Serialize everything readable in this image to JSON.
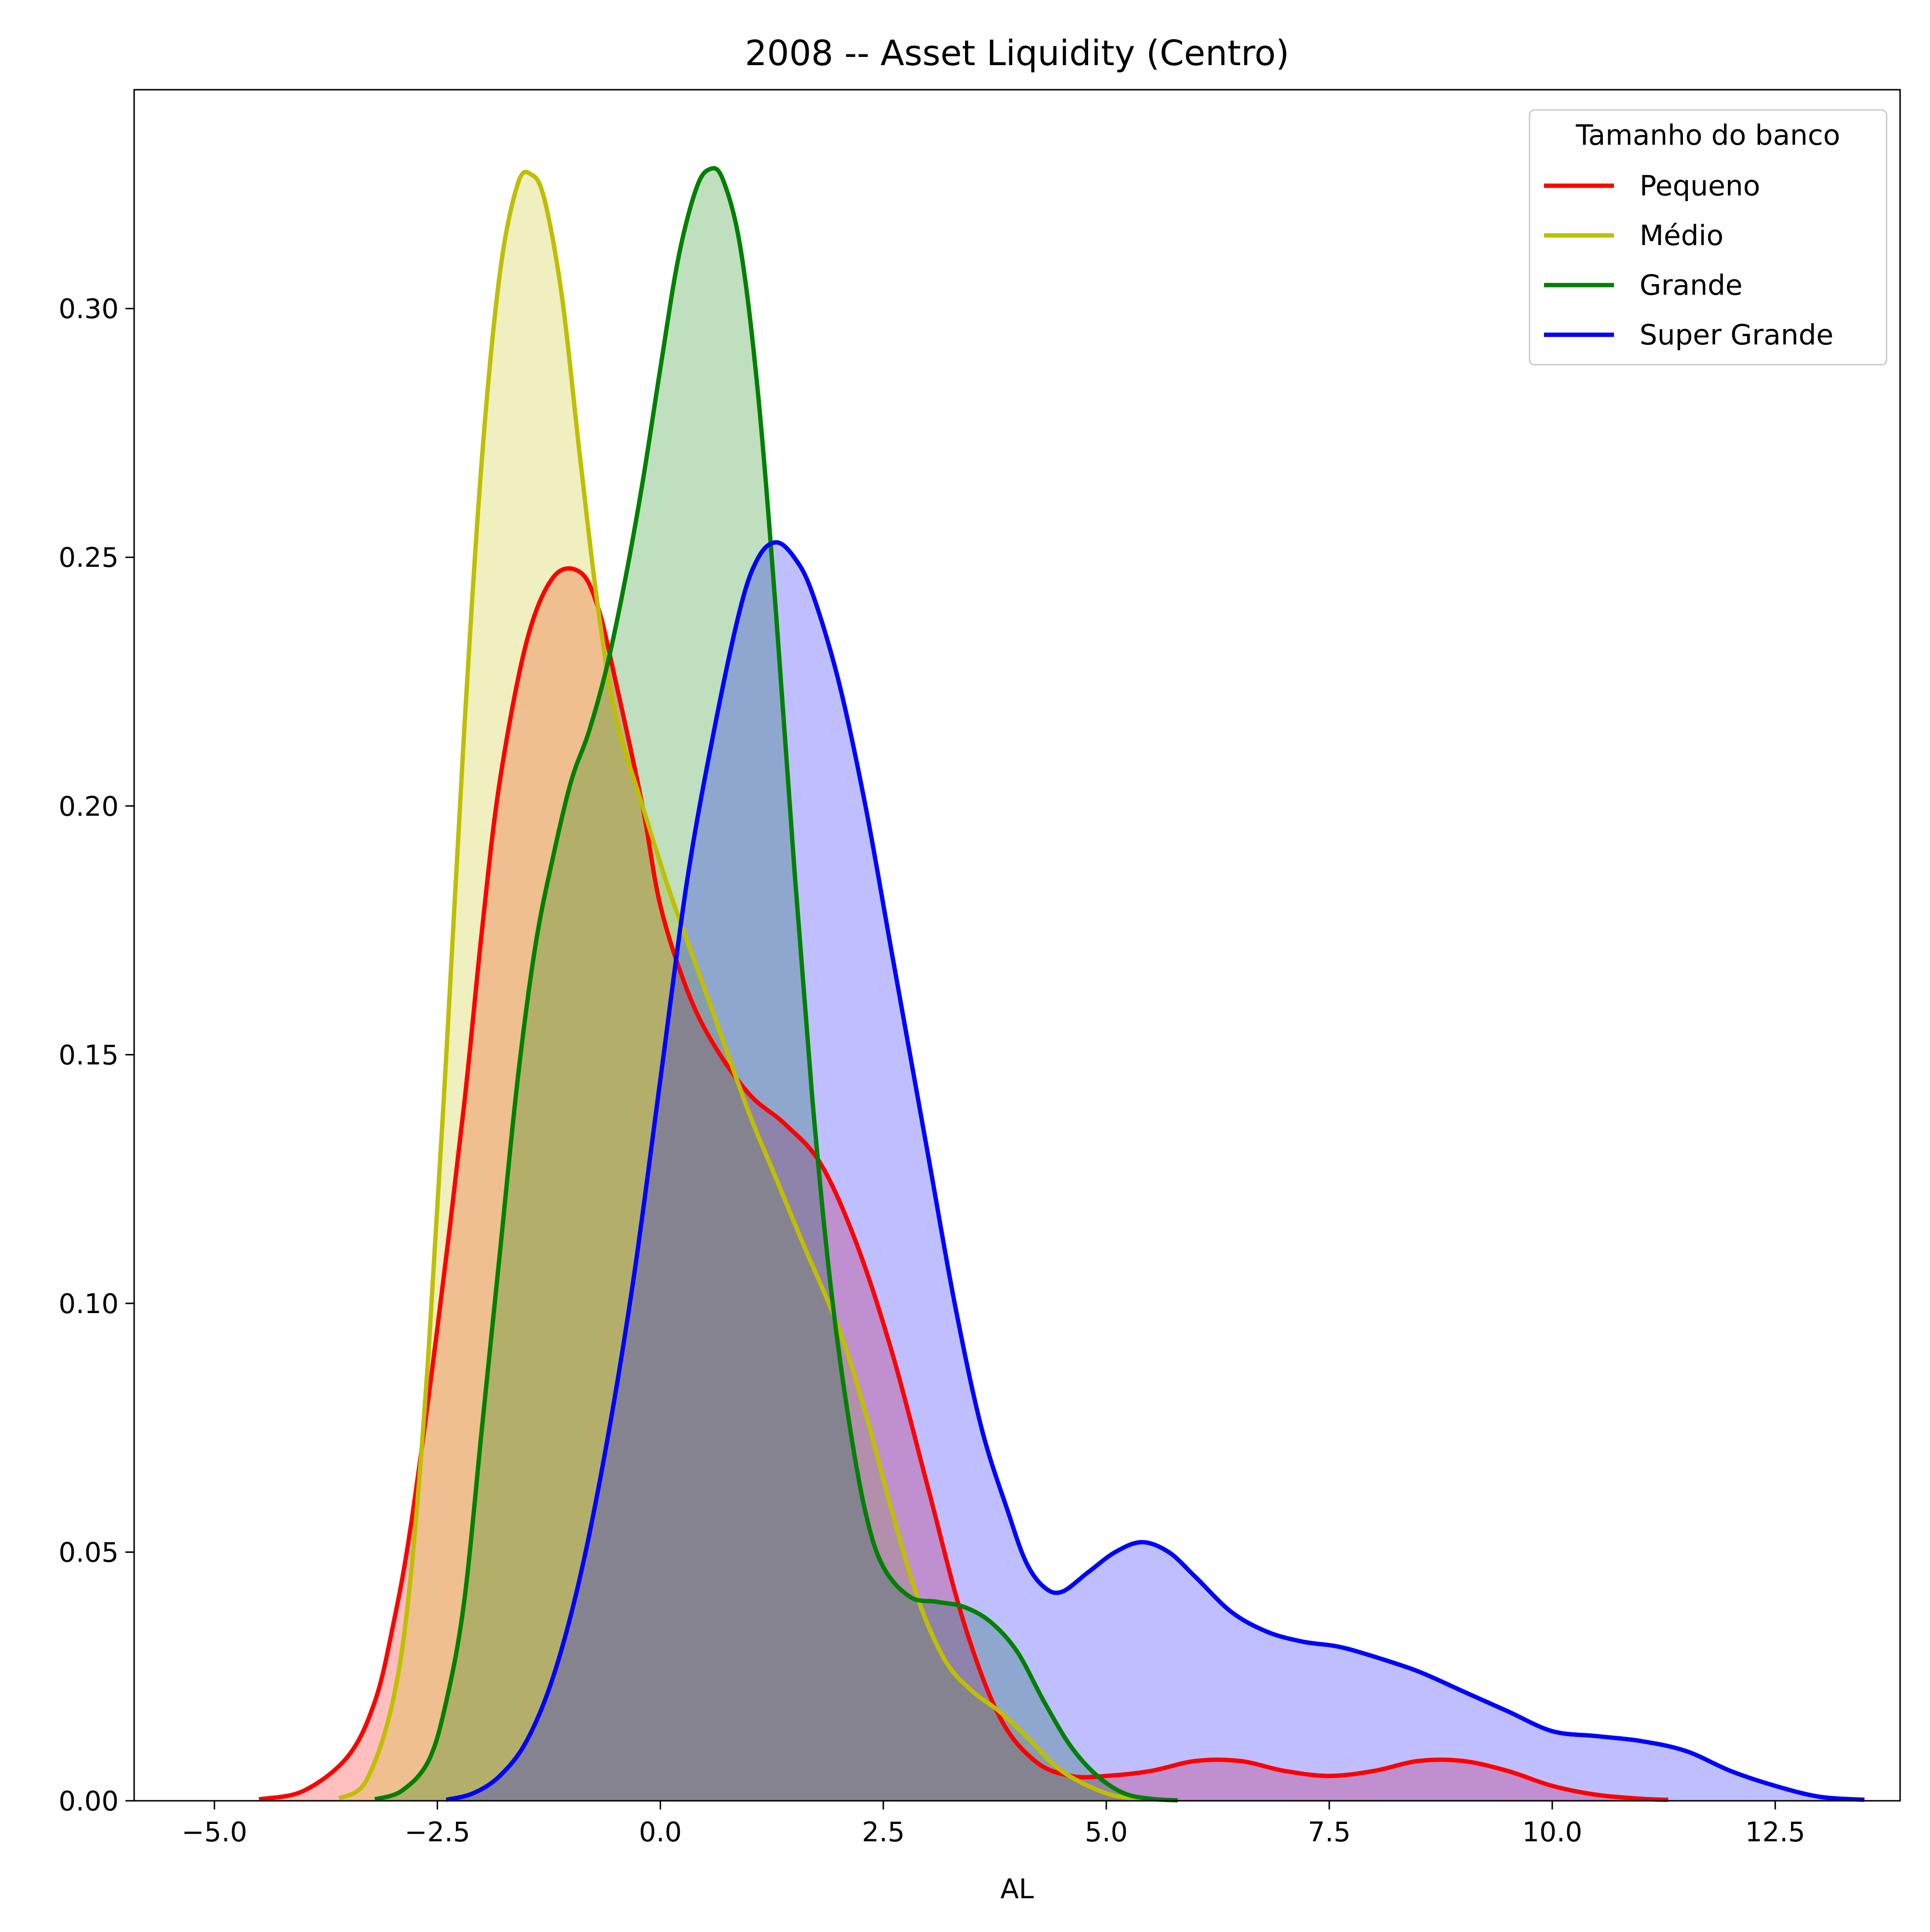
{
  "chart_data": {
    "type": "area",
    "title": "2008 -- Asset Liquidity (Centro)",
    "xlabel": "AL",
    "ylabel": "",
    "xlim": [
      -5.9,
      13.9
    ],
    "ylim": [
      0,
      0.344
    ],
    "x_ticks": [
      -5.0,
      -2.5,
      0.0,
      2.5,
      5.0,
      7.5,
      10.0,
      12.5
    ],
    "x_tick_labels": [
      "−5.0",
      "−2.5",
      "0.0",
      "2.5",
      "5.0",
      "7.5",
      "10.0",
      "12.5"
    ],
    "y_ticks": [
      0.0,
      0.05,
      0.1,
      0.15,
      0.2,
      0.25,
      0.3
    ],
    "y_tick_labels": [
      "0.00",
      "0.05",
      "0.10",
      "0.15",
      "0.20",
      "0.25",
      "0.30"
    ],
    "grid": false,
    "legend": {
      "title": "Tamanho do banco",
      "placement": "top-right"
    },
    "series": [
      {
        "name": "Pequeno",
        "color": "#ff0000",
        "fill_opacity": 0.25,
        "points": [
          [
            -4.5,
            0.0003
          ],
          [
            -4.0,
            0.002
          ],
          [
            -3.5,
            0.009
          ],
          [
            -3.2,
            0.02
          ],
          [
            -3.0,
            0.035
          ],
          [
            -2.8,
            0.055
          ],
          [
            -2.5,
            0.095
          ],
          [
            -2.2,
            0.14
          ],
          [
            -2.0,
            0.175
          ],
          [
            -1.8,
            0.205
          ],
          [
            -1.5,
            0.233
          ],
          [
            -1.2,
            0.246
          ],
          [
            -0.9,
            0.247
          ],
          [
            -0.7,
            0.24
          ],
          [
            -0.5,
            0.225
          ],
          [
            -0.2,
            0.2
          ],
          [
            0.0,
            0.18
          ],
          [
            0.3,
            0.163
          ],
          [
            0.6,
            0.152
          ],
          [
            1.0,
            0.142
          ],
          [
            1.4,
            0.136
          ],
          [
            1.8,
            0.128
          ],
          [
            2.2,
            0.112
          ],
          [
            2.6,
            0.09
          ],
          [
            3.0,
            0.063
          ],
          [
            3.4,
            0.036
          ],
          [
            3.8,
            0.017
          ],
          [
            4.2,
            0.008
          ],
          [
            4.6,
            0.005
          ],
          [
            5.0,
            0.005
          ],
          [
            5.5,
            0.006
          ],
          [
            6.0,
            0.008
          ],
          [
            6.5,
            0.008
          ],
          [
            7.0,
            0.006
          ],
          [
            7.5,
            0.005
          ],
          [
            8.0,
            0.006
          ],
          [
            8.5,
            0.008
          ],
          [
            9.0,
            0.008
          ],
          [
            9.5,
            0.006
          ],
          [
            10.0,
            0.003
          ],
          [
            10.5,
            0.0012
          ],
          [
            11.0,
            0.0004
          ],
          [
            11.3,
            0.0002
          ]
        ]
      },
      {
        "name": "Médio",
        "color": "#bfbf00",
        "fill_opacity": 0.25,
        "points": [
          [
            -3.6,
            0.0005
          ],
          [
            -3.3,
            0.004
          ],
          [
            -3.0,
            0.02
          ],
          [
            -2.8,
            0.045
          ],
          [
            -2.6,
            0.09
          ],
          [
            -2.4,
            0.15
          ],
          [
            -2.2,
            0.215
          ],
          [
            -2.0,
            0.27
          ],
          [
            -1.8,
            0.307
          ],
          [
            -1.6,
            0.325
          ],
          [
            -1.45,
            0.327
          ],
          [
            -1.3,
            0.322
          ],
          [
            -1.1,
            0.302
          ],
          [
            -0.9,
            0.27
          ],
          [
            -0.7,
            0.24
          ],
          [
            -0.5,
            0.218
          ],
          [
            -0.2,
            0.2
          ],
          [
            0.1,
            0.183
          ],
          [
            0.4,
            0.168
          ],
          [
            0.7,
            0.153
          ],
          [
            1.0,
            0.138
          ],
          [
            1.3,
            0.125
          ],
          [
            1.6,
            0.112
          ],
          [
            2.0,
            0.095
          ],
          [
            2.3,
            0.078
          ],
          [
            2.6,
            0.058
          ],
          [
            2.9,
            0.04
          ],
          [
            3.2,
            0.028
          ],
          [
            3.5,
            0.022
          ],
          [
            3.8,
            0.018
          ],
          [
            4.1,
            0.013
          ],
          [
            4.5,
            0.006
          ],
          [
            5.0,
            0.0015
          ],
          [
            5.4,
            0.0003
          ]
        ]
      },
      {
        "name": "Grande",
        "color": "#008000",
        "fill_opacity": 0.25,
        "points": [
          [
            -3.2,
            0.0003
          ],
          [
            -2.9,
            0.002
          ],
          [
            -2.6,
            0.008
          ],
          [
            -2.4,
            0.02
          ],
          [
            -2.2,
            0.04
          ],
          [
            -2.0,
            0.075
          ],
          [
            -1.8,
            0.11
          ],
          [
            -1.6,
            0.145
          ],
          [
            -1.4,
            0.172
          ],
          [
            -1.2,
            0.19
          ],
          [
            -1.0,
            0.205
          ],
          [
            -0.8,
            0.215
          ],
          [
            -0.6,
            0.228
          ],
          [
            -0.4,
            0.245
          ],
          [
            -0.2,
            0.265
          ],
          [
            0.0,
            0.288
          ],
          [
            0.2,
            0.31
          ],
          [
            0.4,
            0.324
          ],
          [
            0.55,
            0.328
          ],
          [
            0.7,
            0.326
          ],
          [
            0.9,
            0.312
          ],
          [
            1.1,
            0.282
          ],
          [
            1.3,
            0.238
          ],
          [
            1.5,
            0.188
          ],
          [
            1.7,
            0.142
          ],
          [
            1.9,
            0.105
          ],
          [
            2.1,
            0.078
          ],
          [
            2.3,
            0.058
          ],
          [
            2.5,
            0.047
          ],
          [
            2.8,
            0.041
          ],
          [
            3.1,
            0.04
          ],
          [
            3.4,
            0.039
          ],
          [
            3.7,
            0.036
          ],
          [
            4.0,
            0.03
          ],
          [
            4.3,
            0.02
          ],
          [
            4.6,
            0.011
          ],
          [
            4.9,
            0.005
          ],
          [
            5.2,
            0.0015
          ],
          [
            5.5,
            0.0004
          ],
          [
            5.8,
            0.0001
          ]
        ]
      },
      {
        "name": "Super Grande",
        "color": "#0000ff",
        "fill_opacity": 0.25,
        "points": [
          [
            -2.4,
            0.0002
          ],
          [
            -2.1,
            0.0015
          ],
          [
            -1.8,
            0.005
          ],
          [
            -1.5,
            0.012
          ],
          [
            -1.2,
            0.025
          ],
          [
            -0.9,
            0.045
          ],
          [
            -0.6,
            0.072
          ],
          [
            -0.3,
            0.105
          ],
          [
            0.0,
            0.145
          ],
          [
            0.3,
            0.185
          ],
          [
            0.6,
            0.215
          ],
          [
            0.9,
            0.24
          ],
          [
            1.1,
            0.25
          ],
          [
            1.3,
            0.253
          ],
          [
            1.5,
            0.25
          ],
          [
            1.7,
            0.243
          ],
          [
            2.0,
            0.225
          ],
          [
            2.3,
            0.2
          ],
          [
            2.6,
            0.17
          ],
          [
            3.0,
            0.13
          ],
          [
            3.3,
            0.1
          ],
          [
            3.6,
            0.075
          ],
          [
            3.9,
            0.058
          ],
          [
            4.1,
            0.048
          ],
          [
            4.3,
            0.043
          ],
          [
            4.5,
            0.042
          ],
          [
            4.8,
            0.046
          ],
          [
            5.1,
            0.05
          ],
          [
            5.4,
            0.052
          ],
          [
            5.7,
            0.05
          ],
          [
            6.0,
            0.045
          ],
          [
            6.4,
            0.038
          ],
          [
            6.8,
            0.034
          ],
          [
            7.2,
            0.032
          ],
          [
            7.6,
            0.031
          ],
          [
            8.0,
            0.029
          ],
          [
            8.5,
            0.026
          ],
          [
            9.0,
            0.022
          ],
          [
            9.5,
            0.018
          ],
          [
            10.0,
            0.014
          ],
          [
            10.5,
            0.013
          ],
          [
            11.0,
            0.012
          ],
          [
            11.5,
            0.01
          ],
          [
            12.0,
            0.006
          ],
          [
            12.5,
            0.003
          ],
          [
            13.0,
            0.0008
          ],
          [
            13.5,
            0.0002
          ]
        ]
      }
    ]
  }
}
